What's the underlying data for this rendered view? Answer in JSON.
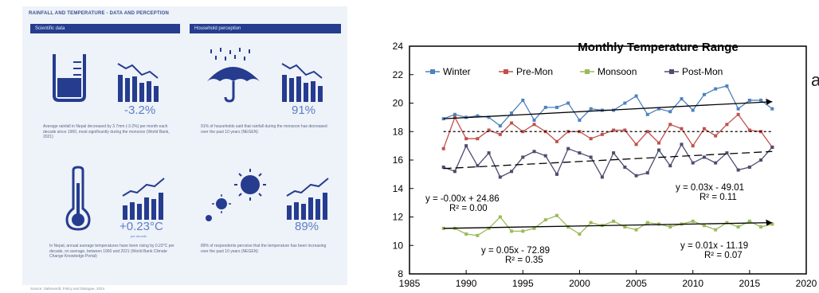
{
  "infographic": {
    "title": "RAINFALL AND TEMPERATURE - DATA AND PERCEPTION",
    "headers": [
      "Scientific data",
      "Household perception"
    ],
    "stats": [
      {
        "value": "-3.2%",
        "desc": "Average rainfall in Nepal decreased by 3.7mm (-3.2%) per month each decade since 1960, most significantly during the monsoon (World Bank, 2021)"
      },
      {
        "value": "91%",
        "desc": "91% of households said that rainfall during the monsoon has decreased over the past 10 years (NEGEN)"
      },
      {
        "value": "+0.23°C",
        "sub": "per decade",
        "desc": "In Nepal, annual average temperatures have been rising by 0.23°C per decade, on average, between 1960 and 2021 (World Bank Climate Change Knowledge Portal)"
      },
      {
        "value": "89%",
        "desc": "89% of respondents perceive that the temperature has been increasing over the past 10 years (NEGEN)"
      }
    ],
    "source": "Source: Saferworld, Policy and Dialogue, 2024",
    "icons": [
      "measuring-beaker-icon",
      "declining-bars-icon",
      "umbrella-rain-icon",
      "declining-bars-icon",
      "thermometer-icon",
      "rising-bars-icon",
      "sun-icon",
      "rising-bars-icon"
    ],
    "colors": {
      "navy": "#253c8f",
      "light_blue": "#5a7fc4",
      "background": "#eef2f9"
    }
  },
  "side_text": "a",
  "chart_data": {
    "type": "line",
    "title": "Monthly Temperature Range",
    "xlabel": "",
    "ylabel": "",
    "xlim": [
      1985,
      2020
    ],
    "ylim": [
      8,
      24
    ],
    "x_ticks": [
      1985,
      1990,
      1995,
      2000,
      2005,
      2010,
      2015,
      2020
    ],
    "y_ticks": [
      8,
      10,
      12,
      14,
      16,
      18,
      20,
      22,
      24
    ],
    "grid": false,
    "legend_position": "top",
    "x": [
      1988,
      1989,
      1990,
      1991,
      1992,
      1993,
      1994,
      1995,
      1996,
      1997,
      1998,
      1999,
      2000,
      2001,
      2002,
      2003,
      2004,
      2005,
      2006,
      2007,
      2008,
      2009,
      2010,
      2011,
      2012,
      2013,
      2014,
      2015,
      2016,
      2017
    ],
    "series": [
      {
        "name": "Winter",
        "color": "#4f81bd",
        "values": [
          18.9,
          19.2,
          19.0,
          19.1,
          19.0,
          18.4,
          19.3,
          20.2,
          18.8,
          19.7,
          19.7,
          20.0,
          18.8,
          19.6,
          19.5,
          19.5,
          20.0,
          20.5,
          19.2,
          19.6,
          19.4,
          20.3,
          19.5,
          20.6,
          21.0,
          21.2,
          19.6,
          20.2,
          20.2,
          19.6
        ],
        "trend": {
          "label": "y = 0.03x - 49.01",
          "r2": "R² = 0.11",
          "start": [
            1988,
            18.9
          ],
          "end": [
            2017,
            20.1
          ]
        }
      },
      {
        "name": "Pre-Mon",
        "color": "#c0504d",
        "values": [
          16.8,
          19.0,
          17.5,
          17.5,
          18.1,
          17.8,
          18.6,
          18.0,
          18.5,
          18.0,
          17.3,
          18.0,
          18.0,
          17.5,
          17.8,
          18.1,
          18.1,
          17.1,
          18.0,
          17.2,
          18.5,
          18.2,
          17.0,
          18.2,
          17.7,
          18.5,
          19.2,
          18.1,
          18.0,
          16.9
        ],
        "trend": {
          "label": "y = -0.00x + 24.86",
          "r2": "R² = 0.00",
          "start": [
            1988,
            18.0
          ],
          "end": [
            2017,
            18.0
          ]
        }
      },
      {
        "name": "Monsoon",
        "color": "#9bbb59",
        "values": [
          11.2,
          11.2,
          10.8,
          10.7,
          11.2,
          12.0,
          11.0,
          11.0,
          11.2,
          11.8,
          12.1,
          11.3,
          10.8,
          11.6,
          11.4,
          11.7,
          11.3,
          11.1,
          11.6,
          11.5,
          11.3,
          11.5,
          11.7,
          11.4,
          11.1,
          11.6,
          11.3,
          11.7,
          11.3,
          11.5
        ],
        "trend": {
          "label": "y = 0.01x - 11.19",
          "r2": "R² = 0.07",
          "start": [
            1988,
            11.2
          ],
          "end": [
            2017,
            11.6
          ]
        }
      },
      {
        "name": "Post-Mon",
        "color": "#4d4d70",
        "values": [
          15.5,
          15.2,
          17.0,
          15.6,
          16.5,
          14.8,
          15.2,
          16.2,
          16.6,
          16.3,
          15.0,
          16.8,
          16.5,
          16.2,
          14.8,
          16.5,
          15.5,
          14.9,
          15.1,
          16.7,
          15.6,
          17.1,
          15.8,
          16.2,
          15.8,
          16.5,
          15.3,
          15.5,
          16.0,
          16.9
        ],
        "trend": {
          "label": "y = 0.05x - 72.89",
          "r2": "R² = 0.35",
          "start": [
            1988,
            15.4
          ],
          "end": [
            2017,
            16.6
          ]
        }
      }
    ]
  }
}
